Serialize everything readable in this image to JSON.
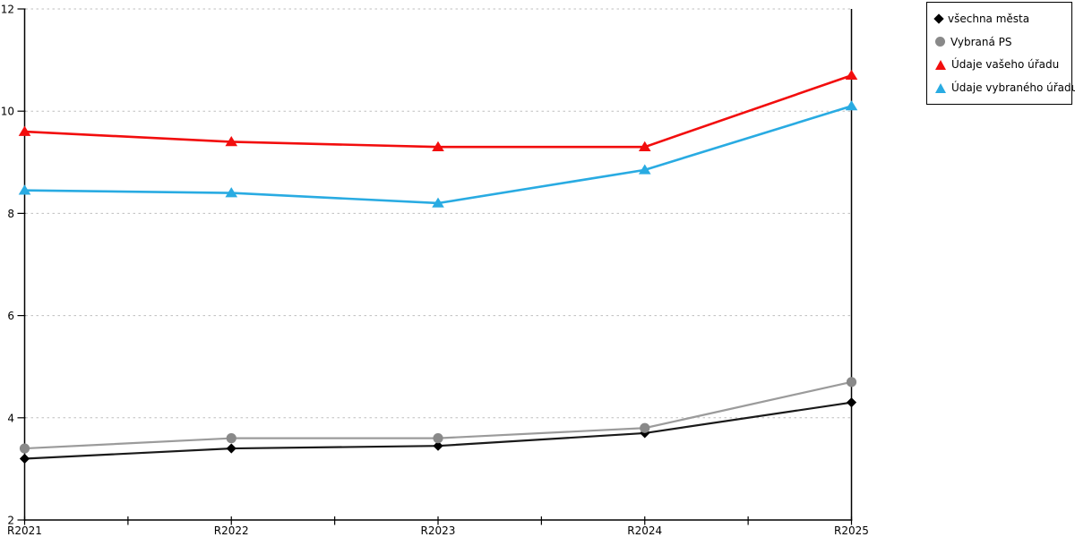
{
  "legend": {
    "items": [
      {
        "label": "všechna města",
        "marker": "diamond",
        "color": "#000000"
      },
      {
        "label": "Vybraná PS",
        "marker": "circle",
        "color": "#898989"
      },
      {
        "label": "Údaje vašeho úřadu",
        "marker": "triangle",
        "color": "#f20d0d"
      },
      {
        "label": "Údaje vybraného úřadu",
        "marker": "triangle",
        "color": "#29abe2"
      }
    ]
  },
  "chart_data": {
    "type": "line",
    "title": "",
    "xlabel": "",
    "ylabel": "",
    "categories": [
      "R2021",
      "R2022",
      "R2023",
      "R2024",
      "R2025"
    ],
    "series": [
      {
        "name": "všechna města",
        "marker": "diamond",
        "color": "#000000",
        "line_color": "#1a1a1a",
        "values": [
          3.2,
          3.4,
          3.45,
          3.7,
          4.3
        ]
      },
      {
        "name": "Vybraná PS",
        "marker": "circle",
        "color": "#898989",
        "line_color": "#9b9b9b",
        "values": [
          3.4,
          3.6,
          3.6,
          3.8,
          4.7
        ]
      },
      {
        "name": "Údaje vašeho úřadu",
        "marker": "triangle",
        "color": "#f20d0d",
        "line_color": "#f20d0d",
        "values": [
          9.6,
          9.4,
          9.3,
          9.3,
          10.7
        ]
      },
      {
        "name": "Údaje vybraného úřadu",
        "marker": "triangle",
        "color": "#29abe2",
        "line_color": "#29abe2",
        "values": [
          8.45,
          8.4,
          8.2,
          8.85,
          10.1
        ]
      }
    ],
    "y_ticks": [
      2,
      4,
      6,
      8,
      10,
      12
    ],
    "ylim": [
      2,
      12
    ],
    "grid": "horizontal-dotted",
    "grid_color": "#bfbfbf",
    "axis_color": "#000000",
    "legend_position": "top-right-outside"
  }
}
